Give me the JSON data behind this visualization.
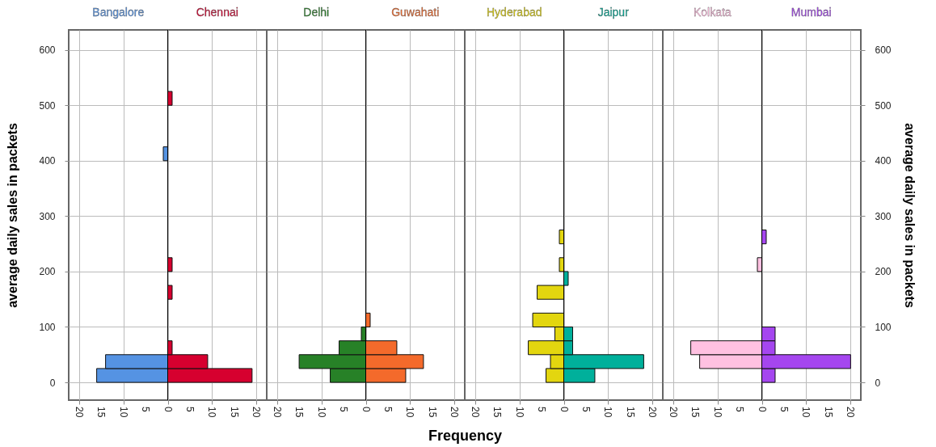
{
  "chart_data": [
    {
      "type": "histogram",
      "orientation": "horizontal",
      "bins": [
        0,
        25,
        50,
        75,
        100,
        125,
        150,
        175,
        200,
        225,
        250,
        275,
        300,
        325,
        350,
        375,
        400,
        425,
        450,
        475,
        500,
        525
      ],
      "series": [
        {
          "name": "Bangalore",
          "color": "#5593e3",
          "values": [
            -16,
            -14,
            0,
            0,
            0,
            0,
            0,
            0,
            0,
            0,
            0,
            0,
            0,
            0,
            0,
            0,
            -1,
            0,
            0,
            0,
            0
          ]
        },
        {
          "name": "Chennai",
          "color": "#d6002f",
          "values": [
            19,
            9,
            1,
            0,
            0,
            0,
            1,
            0,
            1,
            0,
            0,
            0,
            0,
            0,
            0,
            0,
            0,
            0,
            0,
            0,
            1
          ]
        }
      ],
      "xlim": [
        -22.3,
        22.3
      ],
      "xticks": [
        {
          "value": -20,
          "label": "20"
        },
        {
          "value": -15,
          "label": "15"
        },
        {
          "value": -10,
          "label": "10"
        },
        {
          "value": -5,
          "label": "5"
        },
        0,
        5,
        10,
        15,
        20
      ],
      "ylim": [
        -32,
        636
      ],
      "yticks": [
        0,
        100,
        200,
        300,
        400,
        500,
        600
      ],
      "ylabel": "average daily sales in packets",
      "grid": true,
      "legend": false,
      "ref_lines": [
        {
          "axis": "x",
          "value": 0,
          "color": "#000000"
        }
      ]
    },
    {
      "type": "histogram",
      "orientation": "horizontal",
      "bins": [
        0,
        25,
        50,
        75,
        100,
        125,
        150,
        175,
        200,
        225,
        250,
        275,
        300,
        325,
        350,
        375,
        400,
        425,
        450,
        475,
        500,
        525
      ],
      "series": [
        {
          "name": "Delhi",
          "color": "#278127",
          "values": [
            -8,
            -15,
            -6,
            -1,
            0,
            0,
            0,
            0,
            0,
            0,
            0,
            0,
            0,
            0,
            0,
            0,
            0,
            0,
            0,
            0,
            0
          ]
        },
        {
          "name": "Guwahati",
          "color": "#f46a2b",
          "values": [
            9,
            13,
            7,
            0,
            1,
            0,
            0,
            0,
            0,
            0,
            0,
            0,
            0,
            0,
            0,
            0,
            0,
            0,
            0,
            0,
            0
          ]
        }
      ],
      "xlim": [
        -22.3,
        22.3
      ],
      "xticks": [
        {
          "value": -20,
          "label": "20"
        },
        {
          "value": -15,
          "label": "15"
        },
        {
          "value": -10,
          "label": "10"
        },
        {
          "value": -5,
          "label": "5"
        },
        0,
        5,
        10,
        15,
        20
      ],
      "ylim": [
        -32,
        636
      ],
      "yticks": [
        0,
        100,
        200,
        300,
        400,
        500,
        600
      ],
      "xlabel": "Frequency",
      "grid": true,
      "legend": false,
      "tick_labels": "x",
      "ref_lines": [
        {
          "axis": "x",
          "value": 0,
          "color": "#000000"
        }
      ]
    },
    {
      "type": "histogram",
      "orientation": "horizontal",
      "bins": [
        0,
        25,
        50,
        75,
        100,
        125,
        150,
        175,
        200,
        225,
        250,
        275,
        300,
        325,
        350,
        375,
        400,
        425,
        450,
        475,
        500,
        525
      ],
      "series": [
        {
          "name": "Hyderabad",
          "color": "#e3d60f",
          "values": [
            -4,
            -3,
            -8,
            -2,
            -7,
            0,
            -6,
            0,
            -1,
            0,
            -1,
            0,
            0,
            0,
            0,
            0,
            0,
            0,
            0,
            0,
            0
          ]
        },
        {
          "name": "Jaipur",
          "color": "#00b09b",
          "values": [
            7,
            18,
            2,
            2,
            0,
            0,
            0,
            1,
            0,
            0,
            0,
            0,
            0,
            0,
            0,
            0,
            0,
            0,
            0,
            0,
            0
          ]
        }
      ],
      "xlim": [
        -22.3,
        22.3
      ],
      "xticks": [
        {
          "value": -20,
          "label": "20"
        },
        {
          "value": -15,
          "label": "15"
        },
        {
          "value": -10,
          "label": "10"
        },
        {
          "value": -5,
          "label": "5"
        },
        0,
        5,
        10,
        15,
        20
      ],
      "ylim": [
        -32,
        636
      ],
      "yticks": [
        0,
        100,
        200,
        300,
        400,
        500,
        600
      ],
      "grid": true,
      "legend": false,
      "tick_labels": "x",
      "ref_lines": [
        {
          "axis": "x",
          "value": 0,
          "color": "#000000"
        }
      ]
    },
    {
      "type": "histogram",
      "orientation": "horizontal",
      "bins": [
        0,
        25,
        50,
        75,
        100,
        125,
        150,
        175,
        200,
        225,
        250,
        275,
        300,
        325,
        350,
        375,
        400,
        425,
        450,
        475,
        500,
        525
      ],
      "series": [
        {
          "name": "Kolkata",
          "color": "#ffc1e1",
          "values": [
            0,
            -14,
            -16,
            0,
            0,
            0,
            0,
            0,
            -1,
            0,
            0,
            0,
            0,
            0,
            0,
            0,
            0,
            0,
            0,
            0,
            0
          ]
        },
        {
          "name": "Mumbai",
          "color": "#a546ef",
          "values": [
            3,
            20,
            3,
            3,
            0,
            0,
            0,
            0,
            0,
            0,
            1,
            0,
            0,
            0,
            0,
            0,
            0,
            0,
            0,
            0,
            0
          ]
        }
      ],
      "xlim": [
        -22.3,
        22.3
      ],
      "xticks": [
        {
          "value": -20,
          "label": "20"
        },
        {
          "value": -15,
          "label": "15"
        },
        {
          "value": -10,
          "label": "10"
        },
        {
          "value": -5,
          "label": "5"
        },
        0,
        5,
        10,
        15,
        20
      ],
      "ylim": [
        -32,
        636
      ],
      "yticks": [
        0,
        100,
        200,
        300,
        400,
        500,
        600
      ],
      "ylabel": "average daily sales in packets",
      "grid": true,
      "legend": false,
      "ref_lines": [
        {
          "axis": "x",
          "value": 0,
          "color": "#000000"
        }
      ]
    }
  ]
}
